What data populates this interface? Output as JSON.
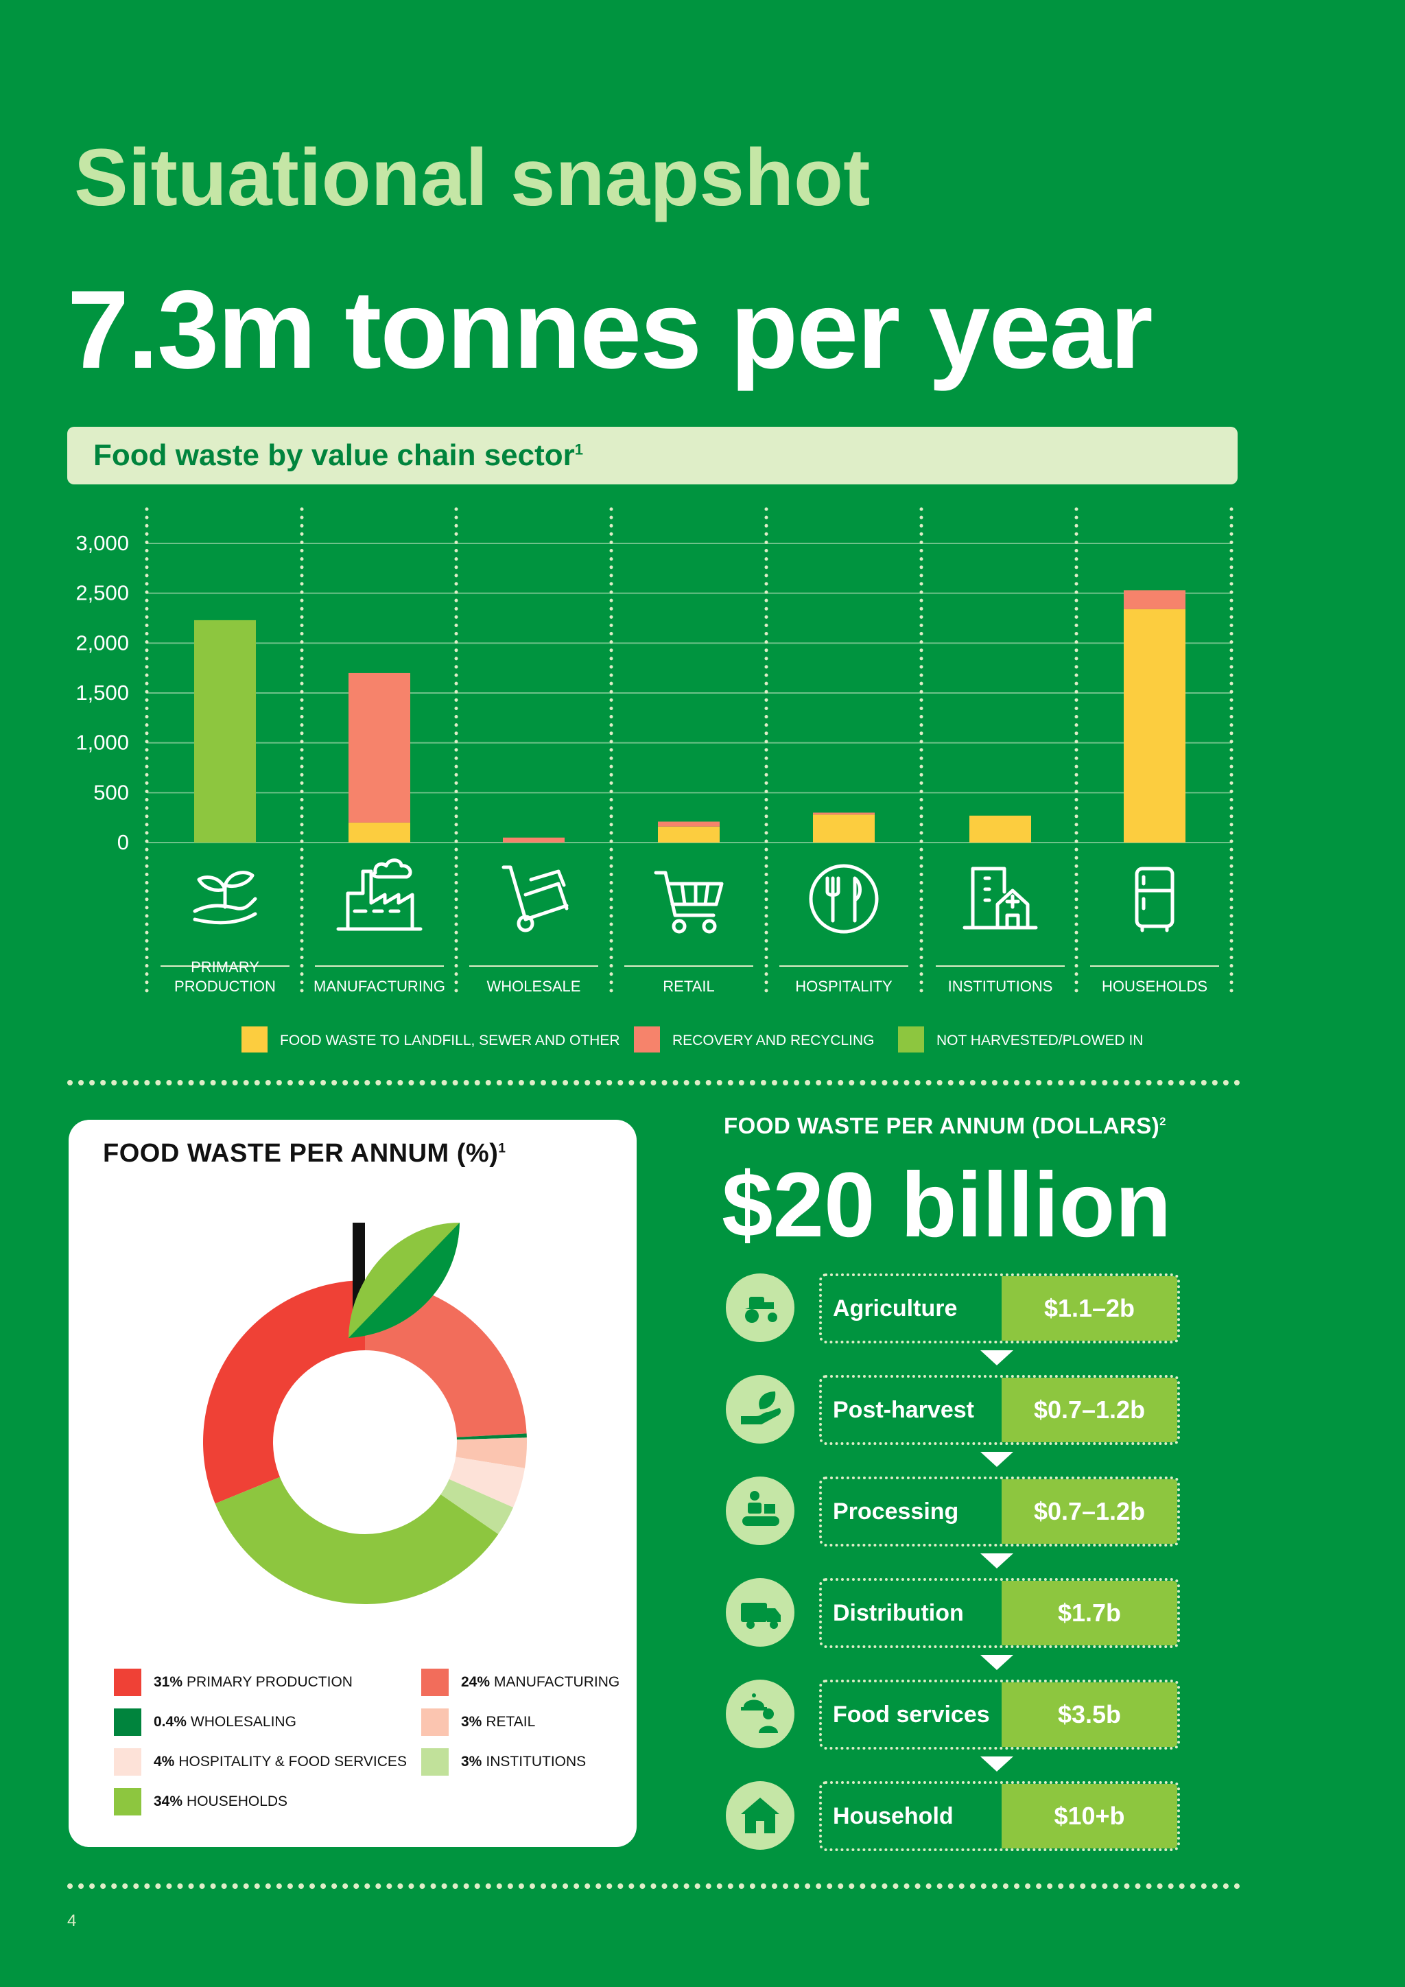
{
  "page": {
    "title": "Situational snapshot",
    "headline": "7.3m tonnes per year",
    "page_number": "4"
  },
  "bar_section": {
    "banner": "Food waste by value chain sector",
    "banner_sup": "1"
  },
  "pie_section": {
    "title": "FOOD WASTE PER ANNUM (%)",
    "title_sup": "1"
  },
  "dollars": {
    "heading": "FOOD WASTE PER ANNUM (DOLLARS)",
    "heading_sup": "2",
    "value": "$20 billion",
    "chain": [
      {
        "label": "Agriculture",
        "value": "$1.1–2b",
        "icon": "tractor-icon"
      },
      {
        "label": "Post-harvest",
        "value": "$0.7–1.2b",
        "icon": "hand-leaf-icon"
      },
      {
        "label": "Processing",
        "value": "$0.7–1.2b",
        "icon": "conveyor-worker-icon"
      },
      {
        "label": "Distribution",
        "value": "$1.7b",
        "icon": "delivery-truck-icon"
      },
      {
        "label": "Food services",
        "value": "$3.5b",
        "icon": "waiter-cloche-icon"
      },
      {
        "label": "Household",
        "value": "$10+b",
        "icon": "house-icon"
      }
    ]
  },
  "colors": {
    "background": "#00943f",
    "landfill": "#fccd3f",
    "recovery": "#f6836b",
    "not_harvested": "#8dc63f"
  },
  "chart_data": [
    {
      "type": "bar",
      "stacked": true,
      "ylim": [
        0,
        3000
      ],
      "yticks": [
        "3,000",
        "2,500",
        "2,000",
        "1,500",
        "1,000",
        "500",
        "0"
      ],
      "ytick_values": [
        3000,
        2500,
        2000,
        1500,
        1000,
        500,
        0
      ],
      "grid": true,
      "categories": [
        "PRIMARY PRODUCTION",
        "MANUFACTURING",
        "WHOLESALE",
        "RETAIL",
        "HOSPITALITY",
        "INSTITUTIONS",
        "HOUSEHOLDS"
      ],
      "category_icons": [
        "seedling-hand-icon",
        "factory-icon",
        "hand-truck-icon",
        "shopping-cart-icon",
        "plate-cutlery-icon",
        "hospital-building-icon",
        "fridge-icon"
      ],
      "series": [
        {
          "name": "FOOD WASTE TO LANDFILL, SEWER AND OTHER",
          "color": "#fccd3f",
          "values": [
            0,
            200,
            0,
            160,
            280,
            270,
            2340
          ]
        },
        {
          "name": "RECOVERY AND RECYCLING",
          "color": "#f6836b",
          "values": [
            0,
            1500,
            50,
            50,
            20,
            0,
            190
          ]
        },
        {
          "name": "NOT HARVESTED/PLOWED IN",
          "color": "#8dc63f",
          "values": [
            2230,
            0,
            0,
            0,
            0,
            0,
            0
          ]
        }
      ],
      "legend_position": "bottom"
    },
    {
      "type": "pie",
      "donut": true,
      "slices": [
        {
          "label": "PRIMARY PRODUCTION",
          "pct_text": "31%",
          "value": 31,
          "color": "#ef4136"
        },
        {
          "label": "MANUFACTURING",
          "pct_text": "24%",
          "value": 24,
          "color": "#f26d5b"
        },
        {
          "label": "WHOLESALING",
          "pct_text": "0.4%",
          "value": 0.4,
          "color": "#00843d"
        },
        {
          "label": "RETAIL",
          "pct_text": "3%",
          "value": 3,
          "color": "#fbc5b0"
        },
        {
          "label": "HOSPITALITY & FOOD SERVICES",
          "pct_text": "4%",
          "value": 4,
          "color": "#fde2d8"
        },
        {
          "label": "INSTITUTIONS",
          "pct_text": "3%",
          "value": 3,
          "color": "#c1e19a"
        },
        {
          "label": "HOUSEHOLDS",
          "pct_text": "34%",
          "value": 34,
          "color": "#8dc63f"
        }
      ],
      "legend_order": [
        "PRIMARY PRODUCTION",
        "MANUFACTURING",
        "WHOLESALING",
        "RETAIL",
        "HOSPITALITY & FOOD SERVICES",
        "INSTITUTIONS",
        "HOUSEHOLDS"
      ],
      "legend_position": "bottom"
    }
  ]
}
